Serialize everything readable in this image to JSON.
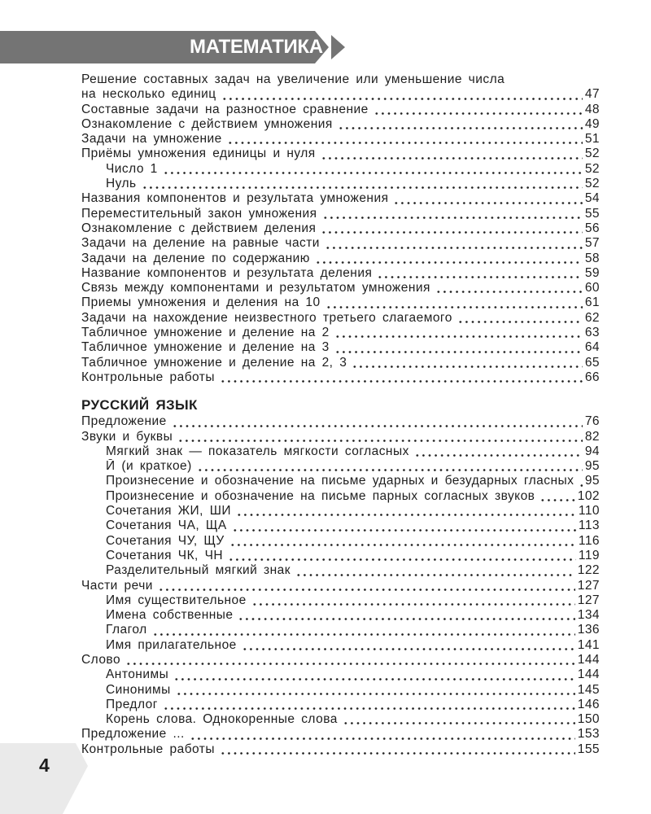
{
  "header": {
    "title": "МАТЕМАТИКА"
  },
  "footer": {
    "page_number": "4"
  },
  "colors": {
    "banner_gray": "#747474",
    "banner_text": "#ffffff",
    "page_tab_gray": "#eaeaea",
    "text": "#1e1e1e"
  },
  "toc": {
    "sections": [
      {
        "heading": "",
        "entries": [
          {
            "pre": "Решение составных задач на увеличение или уменьшение числа",
            "title": "на несколько единиц",
            "page": "47",
            "indent": false
          },
          {
            "title": "Составные задачи на разностное сравнение",
            "page": "48",
            "indent": false
          },
          {
            "title": "Ознакомление с действием умножения",
            "page": "49",
            "indent": false
          },
          {
            "title": "Задачи на умножение",
            "page": "51",
            "indent": false
          },
          {
            "title": "Приёмы умножения единицы и нуля",
            "page": "52",
            "indent": false
          },
          {
            "title": "Число 1",
            "page": "52",
            "indent": true
          },
          {
            "title": "Нуль",
            "page": "52",
            "indent": true
          },
          {
            "title": "Названия компонентов и результата умножения",
            "page": "54",
            "indent": false
          },
          {
            "title": "Переместительный закон умножения",
            "page": "55",
            "indent": false
          },
          {
            "title": "Ознакомление с действием деления",
            "page": "56",
            "indent": false
          },
          {
            "title": "Задачи на деление на равные части",
            "page": "57",
            "indent": false
          },
          {
            "title": "Задачи на деление по содержанию",
            "page": "58",
            "indent": false
          },
          {
            "title": "Название компонентов и результата деления",
            "page": "59",
            "indent": false
          },
          {
            "title": "Связь между компонентами и результатом умножения",
            "page": "60",
            "indent": false
          },
          {
            "title": "Приемы умножения и деления на 10",
            "page": "61",
            "indent": false
          },
          {
            "title": "Задачи на нахождение неизвестного третьего слагаемого",
            "page": "62",
            "indent": false
          },
          {
            "title": "Табличное умножение и деление на 2",
            "page": "63",
            "indent": false
          },
          {
            "title": "Табличное умножение и деление на 3",
            "page": "64",
            "indent": false
          },
          {
            "title": "Табличное умножение и деление на 2, 3",
            "page": "65",
            "indent": false
          },
          {
            "title": "Контрольные работы",
            "page": "66",
            "indent": false
          }
        ]
      },
      {
        "heading": "РУССКИЙ ЯЗЫК",
        "entries": [
          {
            "title": "Предложение",
            "page": "76",
            "indent": false
          },
          {
            "title": "Звуки и буквы",
            "page": "82",
            "indent": false
          },
          {
            "title": "Мягкий знак — показатель мягкости согласных",
            "page": "94",
            "indent": true
          },
          {
            "title": "Й (и краткое)",
            "page": "95",
            "indent": true
          },
          {
            "title": "Произнесение и обозначение на письме ударных и безударных гласных",
            "page": "95",
            "indent": true
          },
          {
            "title": "Произнесение и обозначение на письме парных согласных звуков",
            "page": "102",
            "indent": true
          },
          {
            "title": "Сочетания ЖИ, ШИ",
            "page": "110",
            "indent": true
          },
          {
            "title": "Сочетания ЧА, ЩА",
            "page": "113",
            "indent": true
          },
          {
            "title": "Сочетания ЧУ, ЩУ",
            "page": "116",
            "indent": true
          },
          {
            "title": "Сочетания ЧК, ЧН",
            "page": "119",
            "indent": true
          },
          {
            "title": "Разделительный мягкий знак",
            "page": "122",
            "indent": true
          },
          {
            "title": "Части речи",
            "page": "127",
            "indent": false
          },
          {
            "title": "Имя существительное",
            "page": "127",
            "indent": true
          },
          {
            "title": "Имена собственные",
            "page": "134",
            "indent": true
          },
          {
            "title": "Глагол",
            "page": "136",
            "indent": true
          },
          {
            "title": "Имя прилагательное",
            "page": "141",
            "indent": true
          },
          {
            "title": "Слово",
            "page": "144",
            "indent": false
          },
          {
            "title": "Антонимы",
            "page": "144",
            "indent": true
          },
          {
            "title": "Синонимы",
            "page": "145",
            "indent": true
          },
          {
            "title": "Предлог",
            "page": "146",
            "indent": true
          },
          {
            "title": "Корень слова. Однокоренные слова",
            "page": "150",
            "indent": true
          },
          {
            "title": "Предложение ...",
            "page": "153",
            "indent": false
          },
          {
            "title": "Контрольные работы",
            "page": "155",
            "indent": false
          }
        ]
      }
    ]
  }
}
